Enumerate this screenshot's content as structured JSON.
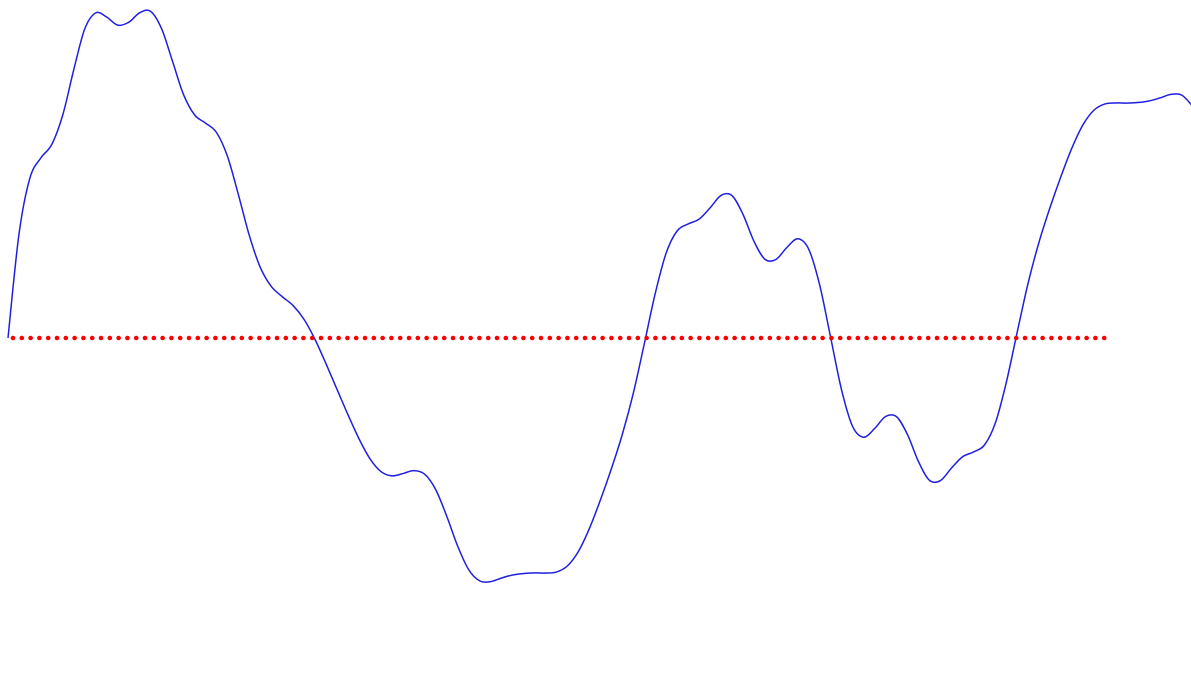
{
  "chart_data": {
    "type": "line",
    "title": "",
    "xlabel": "",
    "ylabel": "",
    "grid": false,
    "legend": "none",
    "xlim": [
      0,
      1.08
    ],
    "ylim": [
      -1.0,
      1.0
    ],
    "x_wrap_period": 1,
    "series": [
      {
        "name": "",
        "style": "solid",
        "color": "#1f1fe0",
        "x": [
          0,
          0.01,
          0.02,
          0.03,
          0.04,
          0.05,
          0.06,
          0.07,
          0.08,
          0.09,
          0.1,
          0.11,
          0.12,
          0.13,
          0.14,
          0.15,
          0.16,
          0.17,
          0.18,
          0.19,
          0.2,
          0.21,
          0.22,
          0.23,
          0.24,
          0.25,
          0.26,
          0.27,
          0.28,
          0.29,
          0.3,
          0.31,
          0.32,
          0.33,
          0.34,
          0.35,
          0.36,
          0.37,
          0.38,
          0.39,
          0.4,
          0.41,
          0.42,
          0.43,
          0.44,
          0.45,
          0.46,
          0.47,
          0.48,
          0.49,
          0.5,
          0.51,
          0.52,
          0.53,
          0.54,
          0.55,
          0.56,
          0.57,
          0.58,
          0.59,
          0.6,
          0.61,
          0.62,
          0.63,
          0.64,
          0.65,
          0.66,
          0.67,
          0.68,
          0.69,
          0.7,
          0.71,
          0.72,
          0.73,
          0.74,
          0.75,
          0.76,
          0.77,
          0.78,
          0.79,
          0.8,
          0.81,
          0.82,
          0.83,
          0.84,
          0.85,
          0.86,
          0.87,
          0.88,
          0.89,
          0.9,
          0.91,
          0.92,
          0.93,
          0.94,
          0.95,
          0.96,
          0.97,
          0.98,
          0.99,
          1.0,
          1.01,
          1.02,
          1.03,
          1.04,
          1.05,
          1.06,
          1.07,
          1.08
        ],
        "y": [
          0,
          0.3135,
          0.4835,
          0.5441,
          0.5854,
          0.6749,
          0.8113,
          0.9342,
          0.9823,
          0.9694,
          0.9452,
          0.9537,
          0.9824,
          0.9869,
          0.9345,
          0.8356,
          0.7354,
          0.6745,
          0.6494,
          0.6212,
          0.5495,
          0.4334,
          0.3094,
          0.2131,
          0.1558,
          0.125,
          0.0976,
          0.0556,
          -0.0053,
          -0.0787,
          -0.1558,
          -0.2324,
          -0.3047,
          -0.3649,
          -0.4036,
          -0.4165,
          -0.4096,
          -0.4006,
          -0.4118,
          -0.4588,
          -0.5389,
          -0.6296,
          -0.7001,
          -0.7338,
          -0.7359,
          -0.725,
          -0.7159,
          -0.7114,
          -0.7096,
          -0.7101,
          -0.7071,
          -0.6885,
          -0.6446,
          -0.5753,
          -0.4895,
          -0.3953,
          -0.2912,
          -0.1671,
          -0.0181,
          0.1345,
          0.2571,
          0.3236,
          0.3445,
          0.3591,
          0.3932,
          0.4307,
          0.4301,
          0.3735,
          0.2921,
          0.2379,
          0.2372,
          0.2734,
          0.2998,
          0.2677,
          0.1587,
          0,
          -0.1587,
          -0.2677,
          -0.2998,
          -0.2734,
          -0.2372,
          -0.2379,
          -0.2921,
          -0.3735,
          -0.4301,
          -0.4307,
          -0.3932,
          -0.3591,
          -0.3445,
          -0.3236,
          -0.2571,
          -0.1345,
          0.0181,
          0.1671,
          0.2912,
          0.3953,
          0.4895,
          0.5753,
          0.6446,
          0.6885,
          0.7071,
          0.7101,
          0.7096,
          0.7114,
          0.7159,
          0.725,
          0.7359,
          0.7338,
          0.7001
        ]
      },
      {
        "name": "",
        "style": "dotted",
        "color": "#ff0000",
        "x": [
          0,
          1
        ],
        "y": [
          0,
          0
        ]
      }
    ]
  }
}
